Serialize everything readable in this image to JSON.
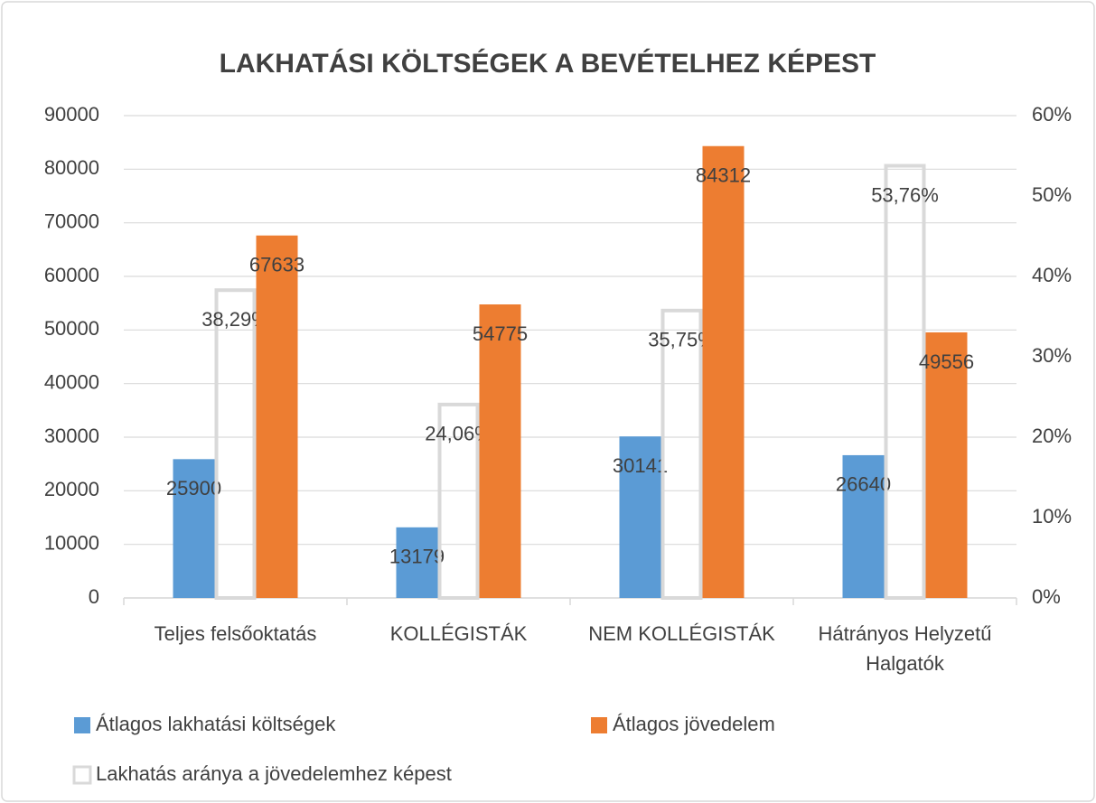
{
  "chart_data": {
    "type": "bar",
    "title": "LAKHATÁSI KÖLTSÉGEK A BEVÉTELHEZ KÉPEST",
    "categories": [
      "Teljes felsőoktatás",
      "KOLLÉGISTÁK",
      "NEM KOLLÉGISTÁK",
      "Hátrányos Helyzetű Halgatók"
    ],
    "series": [
      {
        "name": "Átlagos lakhatási költségek",
        "color": "#5b9bd5",
        "values": [
          25900,
          13179,
          30141,
          26640
        ]
      },
      {
        "name": "Lakhatás aránya a jövedelemhez képest",
        "color": "#d9d9d9",
        "axis": "y2",
        "hollow": true,
        "values": [
          38.29,
          24.06,
          35.75,
          53.76
        ],
        "value_labels": [
          "38,29%",
          "24,06%",
          "35,75%",
          "53,76%"
        ]
      },
      {
        "name": "Átlagos jövedelem",
        "color": "#ed7d31",
        "values": [
          67633,
          54775,
          84312,
          49556
        ]
      }
    ],
    "ylim": [
      0,
      90000
    ],
    "yticks": [
      0,
      10000,
      20000,
      30000,
      40000,
      50000,
      60000,
      70000,
      80000,
      90000
    ],
    "y2lim": [
      0,
      60
    ],
    "y2ticks": [
      {
        "value": 0,
        "label": "0%"
      },
      {
        "value": 10,
        "label": "10%"
      },
      {
        "value": 20,
        "label": "20%"
      },
      {
        "value": 30,
        "label": "30%"
      },
      {
        "value": 40,
        "label": "40%"
      },
      {
        "value": 50,
        "label": "50%"
      },
      {
        "value": 60,
        "label": "60%"
      }
    ],
    "grid": true,
    "legend": "bottom"
  }
}
